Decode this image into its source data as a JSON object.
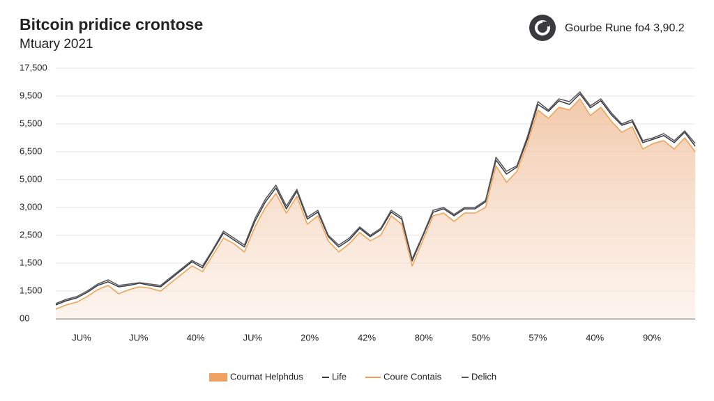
{
  "chart_data": {
    "type": "area-line",
    "title": "Bitcoin pridice crontose",
    "subtitle": "Mtuary 2021",
    "badge": "Gourbe Rune fo4 3,90.2",
    "y_axis_labels": [
      "17,500",
      "9,500",
      "5,500",
      "6,500",
      "5,000",
      "3,000",
      "2,500",
      "1,500",
      "1,500",
      "00"
    ],
    "x_axis_labels": [
      "JU%",
      "JU%",
      "40%",
      "JU%",
      "20%",
      "42%",
      "80%",
      "50%",
      "57%",
      "40%",
      "90%"
    ],
    "ylim": [
      0,
      9
    ],
    "grid": true,
    "series": [
      {
        "name": "Cournat Helphdus",
        "kind": "area",
        "color": "#f0a060",
        "values": [
          0.35,
          0.5,
          0.6,
          0.8,
          1.05,
          1.2,
          0.9,
          1.05,
          1.15,
          1.1,
          1.0,
          1.3,
          1.6,
          1.9,
          1.7,
          2.3,
          2.9,
          2.7,
          2.4,
          3.3,
          4.0,
          4.5,
          3.8,
          4.4,
          3.4,
          3.7,
          2.8,
          2.4,
          2.7,
          3.1,
          2.8,
          3.0,
          3.7,
          3.4,
          1.9,
          2.8,
          3.7,
          3.8,
          3.5,
          3.8,
          3.8,
          4.0,
          5.5,
          4.9,
          5.3,
          6.3,
          7.5,
          7.2,
          7.6,
          7.5,
          7.9,
          7.3,
          7.6,
          7.1,
          6.7,
          6.9,
          6.1,
          6.3,
          6.4,
          6.1,
          6.5,
          6.0
        ]
      },
      {
        "name": "Life",
        "kind": "line",
        "color": "#3a3a40",
        "values": [
          0.5,
          0.65,
          0.75,
          0.95,
          1.2,
          1.33,
          1.15,
          1.2,
          1.28,
          1.2,
          1.15,
          1.45,
          1.75,
          2.05,
          1.83,
          2.45,
          3.08,
          2.83,
          2.58,
          3.5,
          4.2,
          4.7,
          3.95,
          4.58,
          3.58,
          3.83,
          2.95,
          2.58,
          2.83,
          3.25,
          2.95,
          3.2,
          3.83,
          3.58,
          2.08,
          2.95,
          3.83,
          3.95,
          3.7,
          3.95,
          3.95,
          4.2,
          5.7,
          5.2,
          5.45,
          6.45,
          7.7,
          7.45,
          7.83,
          7.7,
          8.08,
          7.58,
          7.83,
          7.33,
          6.95,
          7.08,
          6.33,
          6.45,
          6.58,
          6.33,
          6.7,
          6.2
        ]
      },
      {
        "name": "Coure Contais",
        "kind": "line",
        "color": "#f0a050",
        "values": [
          0.35,
          0.5,
          0.6,
          0.8,
          1.05,
          1.2,
          0.9,
          1.05,
          1.15,
          1.1,
          1.0,
          1.3,
          1.6,
          1.9,
          1.7,
          2.3,
          2.9,
          2.7,
          2.4,
          3.3,
          4.0,
          4.5,
          3.8,
          4.4,
          3.4,
          3.7,
          2.8,
          2.4,
          2.7,
          3.1,
          2.8,
          3.0,
          3.7,
          3.4,
          1.9,
          2.8,
          3.7,
          3.8,
          3.5,
          3.8,
          3.8,
          4.0,
          5.5,
          4.9,
          5.3,
          6.3,
          7.5,
          7.2,
          7.6,
          7.5,
          7.9,
          7.3,
          7.6,
          7.1,
          6.7,
          6.9,
          6.1,
          6.3,
          6.4,
          6.1,
          6.5,
          6.0
        ]
      },
      {
        "name": "Delich",
        "kind": "line",
        "color": "#55555c",
        "values": [
          0.55,
          0.7,
          0.8,
          1.0,
          1.25,
          1.4,
          1.2,
          1.25,
          1.3,
          1.25,
          1.2,
          1.5,
          1.8,
          2.1,
          1.9,
          2.5,
          3.15,
          2.9,
          2.65,
          3.6,
          4.3,
          4.8,
          4.05,
          4.65,
          3.65,
          3.9,
          3.0,
          2.65,
          2.9,
          3.3,
          3.0,
          3.25,
          3.9,
          3.65,
          2.15,
          3.0,
          3.9,
          4.0,
          3.75,
          4.0,
          4.0,
          4.25,
          5.8,
          5.3,
          5.5,
          6.55,
          7.8,
          7.5,
          7.9,
          7.8,
          8.15,
          7.65,
          7.9,
          7.4,
          7.0,
          7.15,
          6.4,
          6.5,
          6.65,
          6.4,
          6.75,
          6.3
        ]
      }
    ]
  }
}
